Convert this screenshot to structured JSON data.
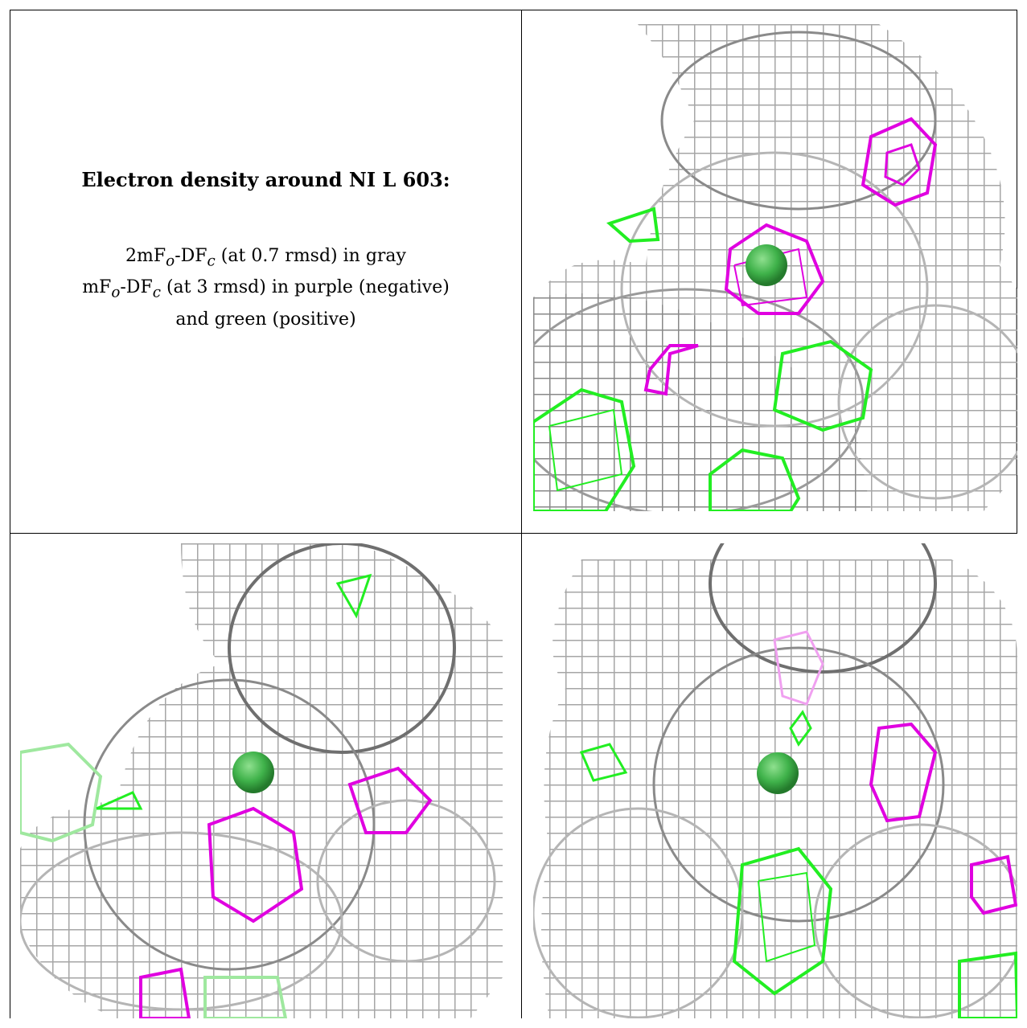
{
  "title": "Electron density around NI L 603:",
  "legend": {
    "line1": "2mFo-DFc (at 0.7 rmsd) in gray",
    "line2": "mFo-DFc (at 3 rmsd) in purple (negative)",
    "line3": "and green (positive)"
  },
  "colors": {
    "density_2fofc": "#a8a8a8",
    "density_2fofc_dark": "#6e6e6e",
    "difference_negative": "#e000e0",
    "difference_positive": "#22ee22",
    "ni_atom": "#3fb24a"
  },
  "panels": [
    {
      "view": "view-1"
    },
    {
      "view": "view-2"
    },
    {
      "view": "view-3"
    }
  ]
}
